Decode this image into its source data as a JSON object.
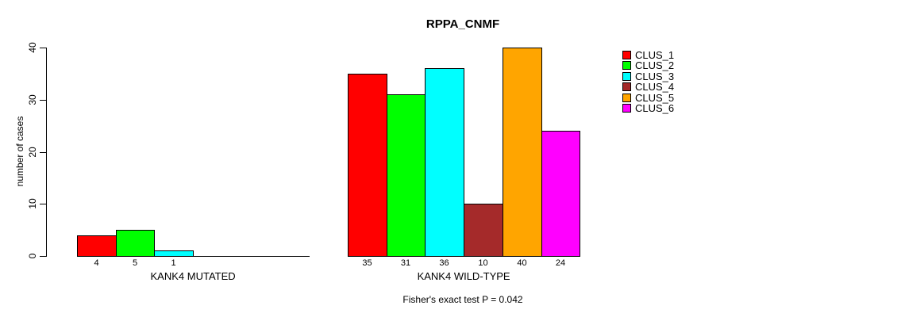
{
  "chart_data": {
    "type": "bar",
    "title": "RPPA_CNMF",
    "xlabel": "",
    "ylabel": "number of cases",
    "ylim": [
      0,
      40
    ],
    "yticks": [
      0,
      10,
      20,
      30,
      40
    ],
    "grid": false,
    "legend_position": "right",
    "categories": [
      "KANK4 MUTATED",
      "KANK4 WILD-TYPE"
    ],
    "series": [
      {
        "name": "CLUS_1",
        "color": "#ff0000",
        "values": [
          4,
          35
        ]
      },
      {
        "name": "CLUS_2",
        "color": "#00ff00",
        "values": [
          5,
          31
        ]
      },
      {
        "name": "CLUS_3",
        "color": "#00ffff",
        "values": [
          1,
          36
        ]
      },
      {
        "name": "CLUS_4",
        "color": "#a52a2a",
        "values": [
          0,
          10
        ]
      },
      {
        "name": "CLUS_5",
        "color": "#ffa500",
        "values": [
          0,
          40
        ]
      },
      {
        "name": "CLUS_6",
        "color": "#ff00ff",
        "values": [
          0,
          24
        ]
      }
    ],
    "bar_value_labels": [
      [
        "4",
        "5",
        "1",
        "",
        "",
        ""
      ],
      [
        "35",
        "31",
        "36",
        "10",
        "40",
        "24"
      ]
    ],
    "annotation": "Fisher's exact test P = 0.042"
  }
}
